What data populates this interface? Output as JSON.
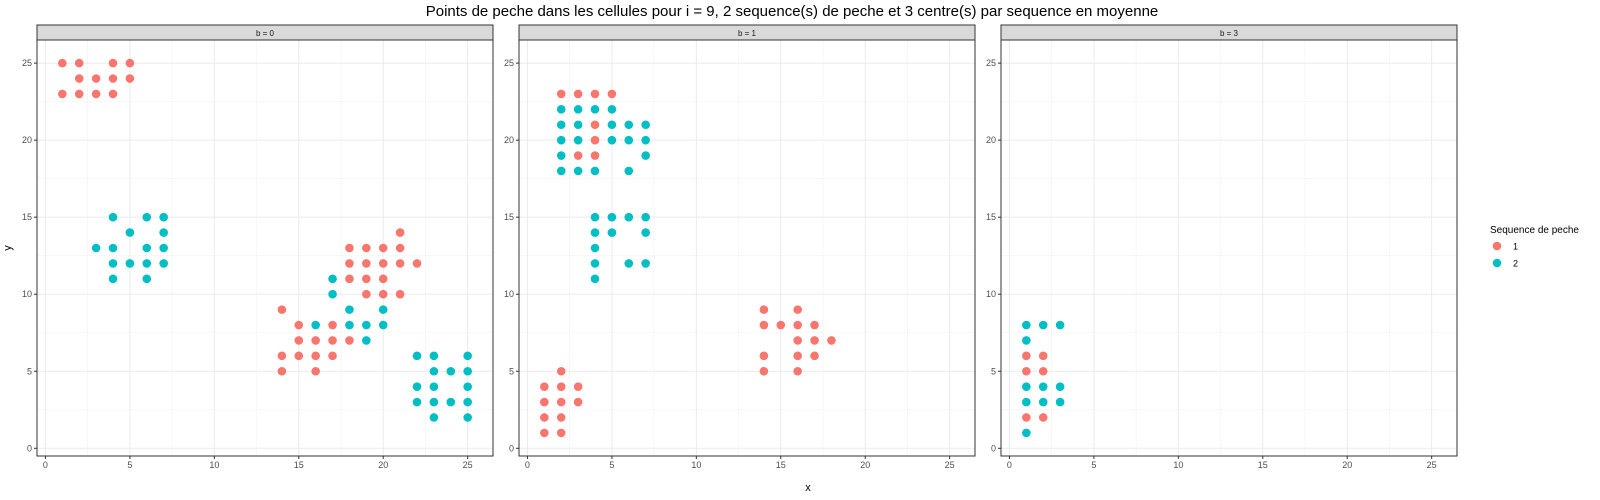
{
  "chart_data": {
    "type": "scatter",
    "title": "Points de peche dans les cellules pour i = 9, 2 sequence(s) de peche et 3 centre(s) par sequence en moyenne",
    "xlabel": "x",
    "ylabel": "y",
    "xlim": [
      -0.5,
      26.5
    ],
    "ylim": [
      -0.5,
      26.5
    ],
    "x_ticks": [
      0,
      5,
      10,
      15,
      20,
      25
    ],
    "y_ticks": [
      0,
      5,
      10,
      15,
      20,
      25
    ],
    "grid": true,
    "legend": {
      "title": "Sequence de peche",
      "position": "right",
      "entries": [
        {
          "label": "1",
          "color": "#F8766D"
        },
        {
          "label": "2",
          "color": "#00BFC4"
        }
      ]
    },
    "panels": [
      {
        "strip": "b = 0",
        "series": [
          {
            "group": "1",
            "color": "#F8766D",
            "points": [
              [
                1,
                25
              ],
              [
                2,
                25
              ],
              [
                4,
                25
              ],
              [
                5,
                25
              ],
              [
                2,
                24
              ],
              [
                3,
                24
              ],
              [
                4,
                24
              ],
              [
                5,
                24
              ],
              [
                1,
                23
              ],
              [
                2,
                23
              ],
              [
                3,
                23
              ],
              [
                4,
                23
              ],
              [
                21,
                14
              ],
              [
                18,
                13
              ],
              [
                19,
                13
              ],
              [
                20,
                13
              ],
              [
                21,
                13
              ],
              [
                18,
                12
              ],
              [
                19,
                12
              ],
              [
                20,
                12
              ],
              [
                21,
                12
              ],
              [
                22,
                12
              ],
              [
                18,
                11
              ],
              [
                19,
                11
              ],
              [
                20,
                11
              ],
              [
                19,
                10
              ],
              [
                20,
                10
              ],
              [
                21,
                10
              ],
              [
                14,
                9
              ],
              [
                15,
                8
              ],
              [
                17,
                8
              ],
              [
                15,
                7
              ],
              [
                16,
                7
              ],
              [
                17,
                7
              ],
              [
                18,
                7
              ],
              [
                14,
                6
              ],
              [
                15,
                6
              ],
              [
                16,
                6
              ],
              [
                17,
                6
              ],
              [
                14,
                5
              ],
              [
                16,
                5
              ]
            ]
          },
          {
            "group": "2",
            "color": "#00BFC4",
            "points": [
              [
                4,
                15
              ],
              [
                6,
                15
              ],
              [
                7,
                15
              ],
              [
                5,
                14
              ],
              [
                7,
                14
              ],
              [
                3,
                13
              ],
              [
                4,
                13
              ],
              [
                6,
                13
              ],
              [
                7,
                13
              ],
              [
                4,
                12
              ],
              [
                5,
                12
              ],
              [
                6,
                12
              ],
              [
                7,
                12
              ],
              [
                4,
                11
              ],
              [
                6,
                11
              ],
              [
                17,
                11
              ],
              [
                17,
                10
              ],
              [
                18,
                9
              ],
              [
                20,
                9
              ],
              [
                16,
                8
              ],
              [
                18,
                8
              ],
              [
                19,
                8
              ],
              [
                20,
                8
              ],
              [
                19,
                7
              ],
              [
                22,
                6
              ],
              [
                23,
                6
              ],
              [
                25,
                6
              ],
              [
                23,
                5
              ],
              [
                24,
                5
              ],
              [
                25,
                5
              ],
              [
                22,
                4
              ],
              [
                23,
                4
              ],
              [
                25,
                4
              ],
              [
                22,
                3
              ],
              [
                23,
                3
              ],
              [
                24,
                3
              ],
              [
                25,
                3
              ],
              [
                23,
                2
              ],
              [
                25,
                2
              ]
            ]
          }
        ]
      },
      {
        "strip": "b = 1",
        "series": [
          {
            "group": "1",
            "color": "#F8766D",
            "points": [
              [
                2,
                23
              ],
              [
                3,
                23
              ],
              [
                4,
                23
              ],
              [
                5,
                23
              ],
              [
                4,
                21
              ],
              [
                4,
                20
              ],
              [
                3,
                19
              ],
              [
                4,
                19
              ],
              [
                14,
                9
              ],
              [
                16,
                9
              ],
              [
                14,
                8
              ],
              [
                15,
                8
              ],
              [
                16,
                8
              ],
              [
                17,
                8
              ],
              [
                16,
                7
              ],
              [
                17,
                7
              ],
              [
                18,
                7
              ],
              [
                14,
                6
              ],
              [
                16,
                6
              ],
              [
                17,
                6
              ],
              [
                14,
                5
              ],
              [
                16,
                5
              ],
              [
                2,
                5
              ],
              [
                1,
                4
              ],
              [
                2,
                4
              ],
              [
                3,
                4
              ],
              [
                1,
                3
              ],
              [
                2,
                3
              ],
              [
                3,
                3
              ],
              [
                1,
                2
              ],
              [
                2,
                2
              ],
              [
                1,
                1
              ],
              [
                2,
                1
              ]
            ]
          },
          {
            "group": "2",
            "color": "#00BFC4",
            "points": [
              [
                2,
                22
              ],
              [
                3,
                22
              ],
              [
                4,
                22
              ],
              [
                5,
                22
              ],
              [
                2,
                21
              ],
              [
                3,
                21
              ],
              [
                5,
                21
              ],
              [
                6,
                21
              ],
              [
                7,
                21
              ],
              [
                2,
                20
              ],
              [
                3,
                20
              ],
              [
                5,
                20
              ],
              [
                6,
                20
              ],
              [
                7,
                20
              ],
              [
                2,
                19
              ],
              [
                7,
                19
              ],
              [
                2,
                18
              ],
              [
                3,
                18
              ],
              [
                4,
                18
              ],
              [
                6,
                18
              ],
              [
                4,
                15
              ],
              [
                5,
                15
              ],
              [
                6,
                15
              ],
              [
                7,
                15
              ],
              [
                4,
                14
              ],
              [
                5,
                14
              ],
              [
                7,
                14
              ],
              [
                4,
                13
              ],
              [
                4,
                12
              ],
              [
                6,
                12
              ],
              [
                7,
                12
              ],
              [
                4,
                11
              ]
            ]
          }
        ]
      },
      {
        "strip": "b = 3",
        "series": [
          {
            "group": "1",
            "color": "#F8766D",
            "points": [
              [
                1,
                6
              ],
              [
                2,
                6
              ],
              [
                1,
                5
              ],
              [
                2,
                5
              ],
              [
                1,
                2
              ],
              [
                2,
                2
              ]
            ]
          },
          {
            "group": "2",
            "color": "#00BFC4",
            "points": [
              [
                1,
                8
              ],
              [
                2,
                8
              ],
              [
                3,
                8
              ],
              [
                1,
                7
              ],
              [
                1,
                4
              ],
              [
                2,
                4
              ],
              [
                3,
                4
              ],
              [
                1,
                3
              ],
              [
                2,
                3
              ],
              [
                3,
                3
              ],
              [
                1,
                1
              ]
            ]
          }
        ]
      }
    ]
  }
}
